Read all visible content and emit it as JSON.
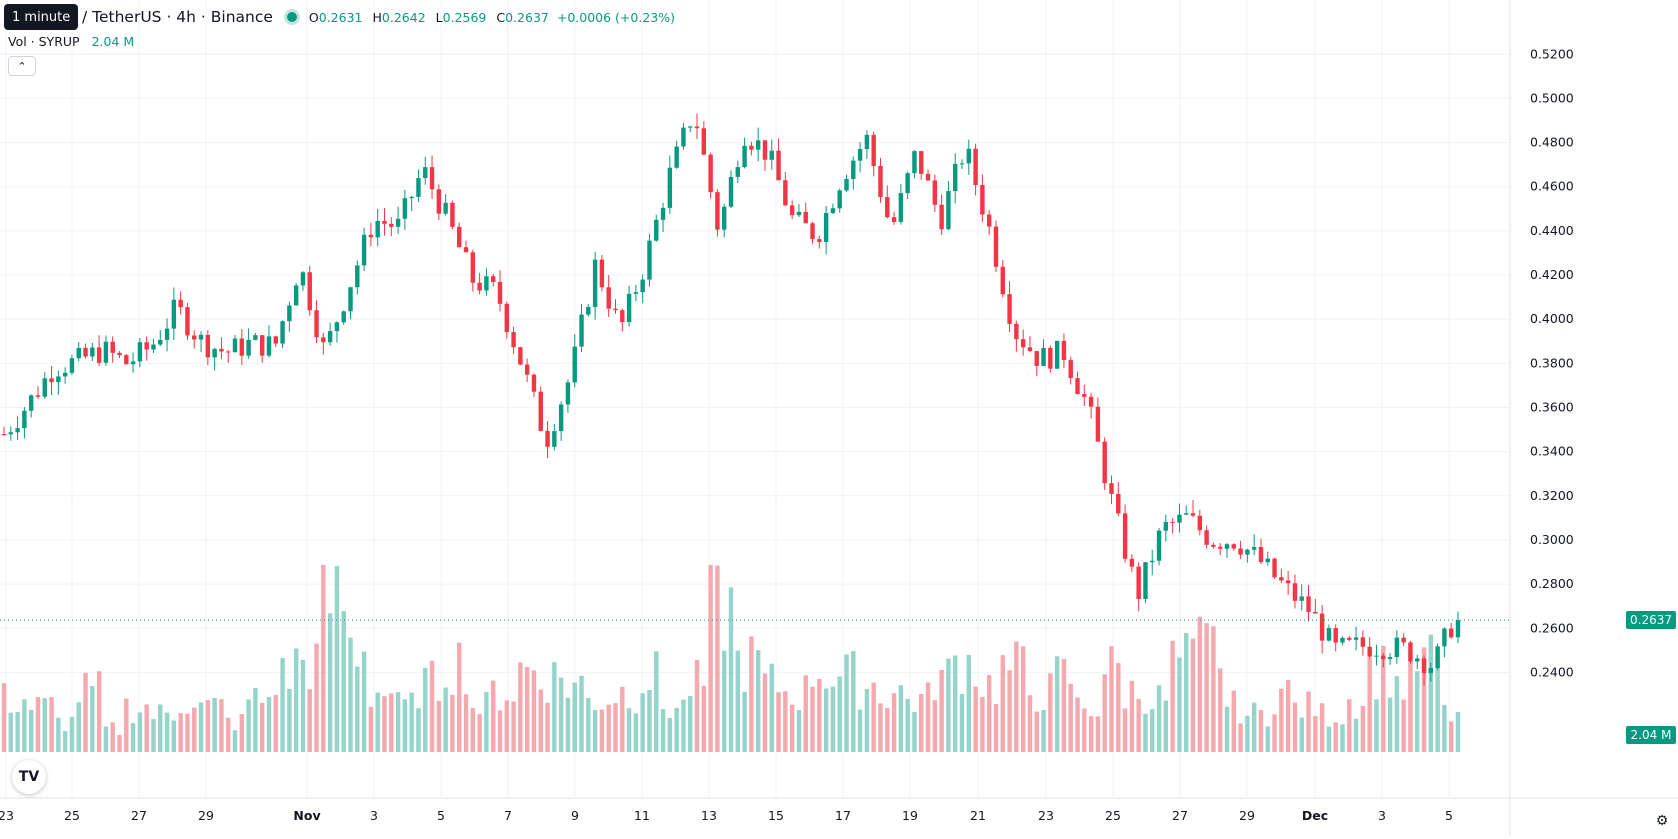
{
  "header": {
    "tooltip": "1 minute",
    "symbol": "/ TetherUS · 4h · Binance",
    "ohlc": [
      {
        "key": "O",
        "value": "0.2631"
      },
      {
        "key": "H",
        "value": "0.2642"
      },
      {
        "key": "L",
        "value": "0.2569"
      },
      {
        "key": "C",
        "value": "0.2637"
      }
    ],
    "change": "+0.0006 (+0.23%)"
  },
  "volume_legend": {
    "label": "Vol · SYRUP",
    "value": "2.04 M"
  },
  "badges": {
    "price": "0.2637",
    "volume": "2.04 M"
  },
  "colors": {
    "up": "#089981",
    "down": "#f23645",
    "up_vol": "#95d4ca",
    "down_vol": "#f5a9ae",
    "grid": "#f0f3fa"
  },
  "icons": {
    "collapse": "chevron-up-icon",
    "logo": "tradingview-logo-icon",
    "settings": "gear-icon"
  },
  "chart_data": {
    "type": "candlestick",
    "y_axis_ticks": [
      "0.2400",
      "0.2600",
      "0.2800",
      "0.3000",
      "0.3200",
      "0.3400",
      "0.3600",
      "0.3800",
      "0.4000",
      "0.4200",
      "0.4400",
      "0.4600",
      "0.4800",
      "0.5000",
      "0.5200"
    ],
    "y_range": [
      0.2334,
      0.5251
    ],
    "x_axis_ticks": [
      "23",
      "25",
      "27",
      "29",
      "Nov",
      "3",
      "5",
      "7",
      "9",
      "11",
      "13",
      "15",
      "17",
      "19",
      "21",
      "23",
      "25",
      "27",
      "29",
      "Dec",
      "3",
      "5"
    ],
    "last_price": 0.2637,
    "close_path": [
      [
        0,
        0.348
      ],
      [
        1,
        0.362
      ],
      [
        2,
        0.378
      ],
      [
        3,
        0.381
      ],
      [
        4,
        0.386
      ],
      [
        5,
        0.38
      ],
      [
        6,
        0.388
      ],
      [
        7,
        0.405
      ],
      [
        8,
        0.39
      ],
      [
        9,
        0.385
      ],
      [
        10,
        0.389
      ],
      [
        11,
        0.388
      ],
      [
        12,
        0.425
      ],
      [
        13,
        0.385
      ],
      [
        14,
        0.415
      ],
      [
        15,
        0.445
      ],
      [
        16,
        0.442
      ],
      [
        17,
        0.468
      ],
      [
        18,
        0.445
      ],
      [
        19,
        0.418
      ],
      [
        20,
        0.412
      ],
      [
        21,
        0.38
      ],
      [
        22,
        0.345
      ],
      [
        23,
        0.375
      ],
      [
        24,
        0.425
      ],
      [
        25,
        0.395
      ],
      [
        26,
        0.425
      ],
      [
        27,
        0.465
      ],
      [
        28,
        0.495
      ],
      [
        29,
        0.44
      ],
      [
        30,
        0.485
      ],
      [
        31,
        0.475
      ],
      [
        32,
        0.445
      ],
      [
        33,
        0.438
      ],
      [
        34,
        0.465
      ],
      [
        35,
        0.482
      ],
      [
        36,
        0.44
      ],
      [
        37,
        0.475
      ],
      [
        38,
        0.445
      ],
      [
        39,
        0.478
      ],
      [
        40,
        0.44
      ],
      [
        41,
        0.395
      ],
      [
        42,
        0.382
      ],
      [
        43,
        0.385
      ],
      [
        44,
        0.36
      ],
      [
        45,
        0.315
      ],
      [
        46,
        0.275
      ],
      [
        47,
        0.305
      ],
      [
        48,
        0.31
      ],
      [
        49,
        0.3
      ],
      [
        50,
        0.3
      ],
      [
        51,
        0.29
      ],
      [
        52,
        0.278
      ],
      [
        53,
        0.268
      ],
      [
        54,
        0.25
      ],
      [
        55,
        0.252
      ],
      [
        56,
        0.252
      ],
      [
        57,
        0.25
      ],
      [
        58,
        0.243
      ],
      [
        59,
        0.268
      ]
    ],
    "volume_pattern": [
      0.35,
      0.3,
      0.2,
      0.4,
      0.15,
      0.3,
      0.25,
      0.35,
      0.3,
      0.2,
      0.35,
      0.5,
      0.6,
      1.0,
      0.7,
      0.4,
      0.3,
      0.45,
      0.6,
      0.3,
      0.4,
      0.55,
      0.5,
      0.45,
      0.35,
      0.4,
      0.5,
      0.3,
      0.45,
      0.95,
      0.6,
      0.45,
      0.4,
      0.55,
      0.5,
      0.45,
      0.4,
      0.35,
      0.5,
      0.6,
      0.45,
      0.55,
      0.4,
      0.5,
      0.3,
      0.55,
      0.4,
      0.35,
      0.6,
      0.7,
      0.3,
      0.25,
      0.4,
      0.3,
      0.25,
      0.35,
      0.55,
      0.45,
      0.6,
      0.25
    ]
  }
}
